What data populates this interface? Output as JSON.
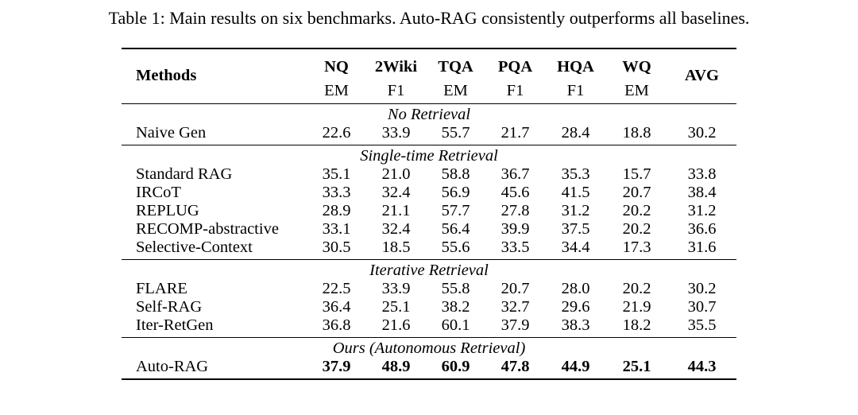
{
  "caption": "Table 1: Main results on six benchmarks. Auto-RAG consistently outperforms all baselines.",
  "header": {
    "methods": "Methods",
    "avg": "AVG",
    "datasets": [
      {
        "name": "NQ",
        "metric": "EM"
      },
      {
        "name": "2Wiki",
        "metric": "F1"
      },
      {
        "name": "TQA",
        "metric": "EM"
      },
      {
        "name": "PQA",
        "metric": "F1"
      },
      {
        "name": "HQA",
        "metric": "F1"
      },
      {
        "name": "WQ",
        "metric": "EM"
      }
    ]
  },
  "groups": [
    {
      "title": "No Retrieval",
      "rows": [
        {
          "method": "Naive Gen",
          "values": [
            "22.6",
            "33.9",
            "55.7",
            "21.7",
            "28.4",
            "18.8",
            "30.2"
          ]
        }
      ]
    },
    {
      "title": "Single-time Retrieval",
      "rows": [
        {
          "method": "Standard RAG",
          "values": [
            "35.1",
            "21.0",
            "58.8",
            "36.7",
            "35.3",
            "15.7",
            "33.8"
          ]
        },
        {
          "method": "IRCoT",
          "values": [
            "33.3",
            "32.4",
            "56.9",
            "45.6",
            "41.5",
            "20.7",
            "38.4"
          ]
        },
        {
          "method": "REPLUG",
          "values": [
            "28.9",
            "21.1",
            "57.7",
            "27.8",
            "31.2",
            "20.2",
            "31.2"
          ]
        },
        {
          "method": "RECOMP-abstractive",
          "values": [
            "33.1",
            "32.4",
            "56.4",
            "39.9",
            "37.5",
            "20.2",
            "36.6"
          ]
        },
        {
          "method": "Selective-Context",
          "values": [
            "30.5",
            "18.5",
            "55.6",
            "33.5",
            "34.4",
            "17.3",
            "31.6"
          ]
        }
      ]
    },
    {
      "title": "Iterative Retrieval",
      "rows": [
        {
          "method": "FLARE",
          "values": [
            "22.5",
            "33.9",
            "55.8",
            "20.7",
            "28.0",
            "20.2",
            "30.2"
          ]
        },
        {
          "method": "Self-RAG",
          "values": [
            "36.4",
            "25.1",
            "38.2",
            "32.7",
            "29.6",
            "21.9",
            "30.7"
          ]
        },
        {
          "method": "Iter-RetGen",
          "values": [
            "36.8",
            "21.6",
            "60.1",
            "37.9",
            "38.3",
            "18.2",
            "35.5"
          ]
        }
      ]
    },
    {
      "title": "Ours (Autonomous Retrieval)",
      "rows": [
        {
          "method": "Auto-RAG",
          "values": [
            "37.9",
            "48.9",
            "60.9",
            "47.8",
            "44.9",
            "25.1",
            "44.3"
          ]
        }
      ]
    }
  ]
}
